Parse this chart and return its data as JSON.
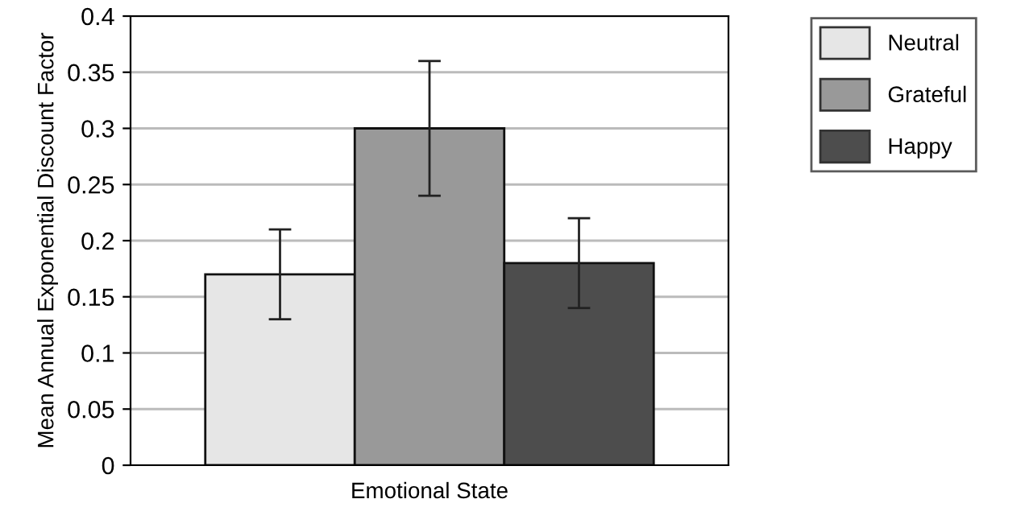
{
  "chart_data": {
    "type": "bar",
    "xlabel": "Emotional State",
    "ylabel": "Mean Annual Exponential Discount Factor",
    "categories": [
      null
    ],
    "series": [
      {
        "name": "Neutral",
        "color": "#e6e6e6",
        "values": [
          0.17
        ],
        "errors": [
          0.04
        ]
      },
      {
        "name": "Grateful",
        "color": "#999999",
        "values": [
          0.3
        ],
        "errors": [
          0.06
        ]
      },
      {
        "name": "Happy",
        "color": "#4d4d4d",
        "values": [
          0.18
        ],
        "errors": [
          0.04
        ]
      }
    ],
    "ylim": [
      0,
      0.4
    ],
    "yticks": [
      0,
      0.05,
      0.1,
      0.15,
      0.2,
      0.25,
      0.3,
      0.35,
      0.4
    ],
    "grid": "y",
    "legend": "top right"
  }
}
